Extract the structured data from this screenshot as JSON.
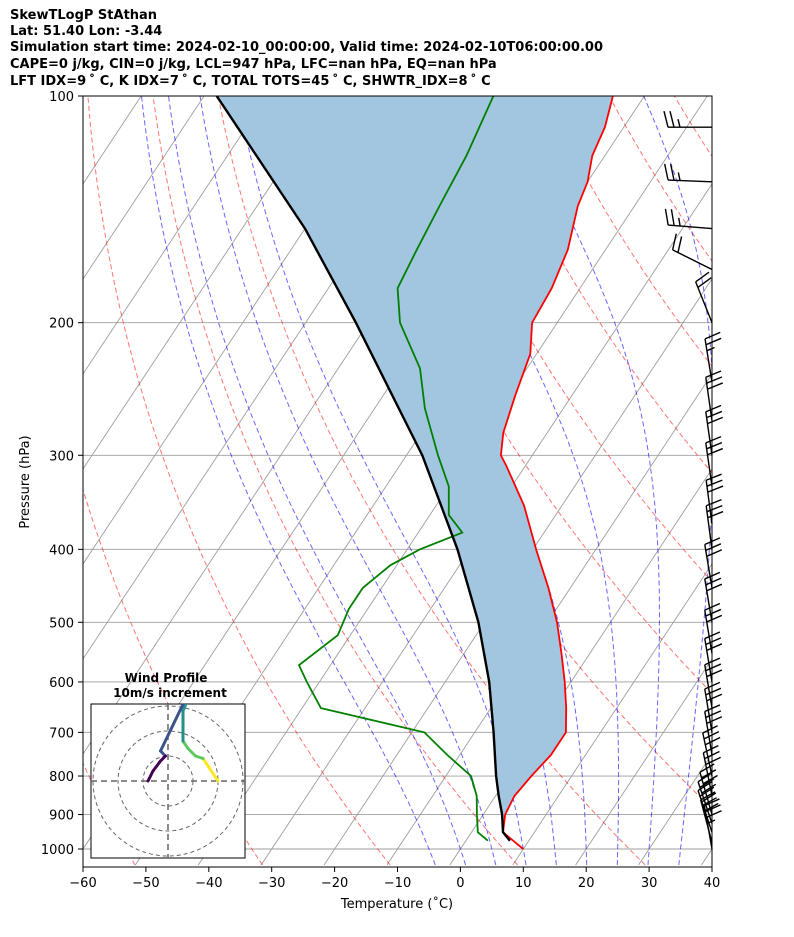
{
  "header": {
    "line1": "SkewTLogP StAthan",
    "line2": "Lat: 51.40   Lon: -3.44",
    "line3": "Simulation start time: 2024-02-10_00:00:00, Valid time: 2024-02-10T06:00:00.00",
    "line4": "CAPE=0 j/kg, CIN=0 j/kg, LCL=947 hPa, LFC=nan hPa, EQ=nan hPa",
    "line5": "LFT IDX=9 ˚ C, K IDX=7 ˚ C, TOTAL TOTS=45 ˚ C, SHWTR_IDX=8 ˚ C"
  },
  "chart_data": {
    "type": "skew-t log-p",
    "xlabel": "Temperature (˚C)",
    "ylabel": "Pressure (hPa)",
    "xlim": [
      -60,
      40
    ],
    "ylim_hPa": [
      1050,
      100
    ],
    "log_pressure_axis": true,
    "grid": true,
    "x_ticks": [
      "−60",
      "−50",
      "−40",
      "−30",
      "−20",
      "−10",
      "0",
      "10",
      "20",
      "30",
      "40"
    ],
    "y_ticks": [
      "100",
      "200",
      "300",
      "400",
      "500",
      "600",
      "700",
      "800",
      "900",
      "1000"
    ],
    "y_tick_values": [
      100,
      200,
      300,
      400,
      500,
      600,
      700,
      800,
      900,
      1000
    ],
    "temperature": {
      "color": "#ff0000",
      "points": [
        [
          1000,
          10
        ],
        [
          990,
          9
        ],
        [
          950,
          5
        ],
        [
          900,
          3.5
        ],
        [
          850,
          3
        ],
        [
          800,
          3.6
        ],
        [
          750,
          4.5
        ],
        [
          700,
          4.5
        ],
        [
          650,
          2
        ],
        [
          600,
          -1
        ],
        [
          550,
          -4.5
        ],
        [
          500,
          -8.5
        ],
        [
          450,
          -13.5
        ],
        [
          400,
          -19.5
        ],
        [
          350,
          -26
        ],
        [
          310,
          -33
        ],
        [
          300,
          -35
        ],
        [
          280,
          -37
        ],
        [
          250,
          -39
        ],
        [
          220,
          -41
        ],
        [
          200,
          -44
        ],
        [
          180,
          -44.5
        ],
        [
          160,
          -46
        ],
        [
          140,
          -49
        ],
        [
          130,
          -50
        ],
        [
          120,
          -52
        ],
        [
          110,
          -53
        ],
        [
          100,
          -55
        ]
      ]
    },
    "dewpoint": {
      "color": "#008000",
      "points": [
        [
          975,
          3.5
        ],
        [
          950,
          1
        ],
        [
          900,
          -1
        ],
        [
          850,
          -3
        ],
        [
          800,
          -6
        ],
        [
          750,
          -12
        ],
        [
          700,
          -18
        ],
        [
          650,
          -37
        ],
        [
          600,
          -42
        ],
        [
          570,
          -45
        ],
        [
          520,
          -42
        ],
        [
          480,
          -43
        ],
        [
          450,
          -43
        ],
        [
          420,
          -41
        ],
        [
          400,
          -38
        ],
        [
          380,
          -33
        ],
        [
          360,
          -37
        ],
        [
          330,
          -40
        ],
        [
          300,
          -45
        ],
        [
          260,
          -52
        ],
        [
          230,
          -57
        ],
        [
          200,
          -65
        ],
        [
          180,
          -69
        ],
        [
          160,
          -70
        ],
        [
          140,
          -71
        ],
        [
          120,
          -72
        ],
        [
          100,
          -74
        ]
      ]
    },
    "parcel": {
      "color": "#000000",
      "points": [
        [
          975,
          7
        ],
        [
          950,
          5
        ],
        [
          900,
          3
        ],
        [
          850,
          0.5
        ],
        [
          800,
          -2
        ],
        [
          700,
          -7
        ],
        [
          600,
          -13
        ],
        [
          500,
          -21
        ],
        [
          400,
          -32
        ],
        [
          300,
          -47.5
        ],
        [
          200,
          -72
        ],
        [
          150,
          -90
        ],
        [
          100,
          -118
        ]
      ]
    },
    "cape_cin_fill_color": "#a3c6e0",
    "dry_adiabats_theta_K": [
      220,
      240,
      260,
      280,
      300,
      320,
      340,
      360,
      380,
      400,
      420,
      440
    ],
    "moist_adiabats_start_C": [
      -5,
      0,
      5,
      10,
      15,
      20,
      25,
      30,
      35
    ],
    "isotherm_color": "#9e9e9e",
    "dry_adiabat_color": "#ff0000",
    "moist_adiabat_color": "#0000ff",
    "wind_barbs": {
      "color": "#000000",
      "note": "full barbs on right edge, speeds in knots",
      "levels": [
        {
          "p": 1000,
          "u": -6,
          "v": 34
        },
        {
          "p": 980,
          "u": -8,
          "v": 30
        },
        {
          "p": 950,
          "u": -10,
          "v": 30
        },
        {
          "p": 925,
          "u": -10,
          "v": 30
        },
        {
          "p": 900,
          "u": -8,
          "v": 28
        },
        {
          "p": 850,
          "u": -6,
          "v": 30
        },
        {
          "p": 800,
          "u": -6,
          "v": 28
        },
        {
          "p": 750,
          "u": -5,
          "v": 30
        },
        {
          "p": 700,
          "u": -5,
          "v": 30
        },
        {
          "p": 650,
          "u": -5,
          "v": 30
        },
        {
          "p": 600,
          "u": -5,
          "v": 30
        },
        {
          "p": 550,
          "u": -5,
          "v": 30
        },
        {
          "p": 500,
          "u": -5,
          "v": 30
        },
        {
          "p": 450,
          "u": -5,
          "v": 30
        },
        {
          "p": 400,
          "u": -4,
          "v": 30
        },
        {
          "p": 370,
          "u": -4,
          "v": 30
        },
        {
          "p": 330,
          "u": -4,
          "v": 28
        },
        {
          "p": 300,
          "u": -4,
          "v": 28
        },
        {
          "p": 270,
          "u": -4,
          "v": 28
        },
        {
          "p": 240,
          "u": -4,
          "v": 25
        },
        {
          "p": 200,
          "u": -8,
          "v": 20
        },
        {
          "p": 170,
          "u": -20,
          "v": 10
        },
        {
          "p": 150,
          "u": -25,
          "v": 2
        },
        {
          "p": 130,
          "u": -25,
          "v": 1
        },
        {
          "p": 110,
          "u": -25,
          "v": 0
        }
      ]
    },
    "wind_profile_inset": {
      "title": "Wind Profile",
      "subtitle": "10m/s increment",
      "rings": [
        1,
        2,
        3
      ],
      "hodograph_uv": [
        [
          2.0,
          0.0
        ],
        [
          1.8,
          0.3
        ],
        [
          1.6,
          0.6
        ],
        [
          1.4,
          0.9
        ],
        [
          1.1,
          1.0
        ],
        [
          0.8,
          1.3
        ],
        [
          0.6,
          1.6
        ],
        [
          0.6,
          2.2
        ],
        [
          0.6,
          2.8
        ],
        [
          0.8,
          3.3
        ],
        [
          1.0,
          3.9
        ],
        [
          -0.3,
          1.2
        ],
        [
          -0.1,
          1.0
        ],
        [
          -0.3,
          0.8
        ],
        [
          -0.6,
          0.4
        ],
        [
          -0.8,
          0.0
        ]
      ],
      "colormap": [
        "#fde725",
        "#5ec962",
        "#21918c",
        "#3b528b",
        "#440154"
      ]
    }
  }
}
